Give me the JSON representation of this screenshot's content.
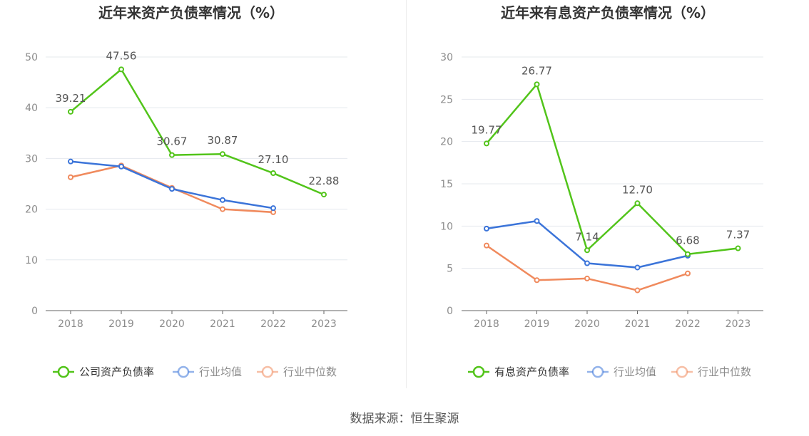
{
  "source": "数据来源：恒生聚源",
  "chart_data": [
    {
      "type": "line",
      "title": "近年来资产负债率情况（%）",
      "x": [
        "2018",
        "2019",
        "2020",
        "2021",
        "2022",
        "2023"
      ],
      "y_ticks": [
        0,
        10,
        20,
        30,
        40,
        50
      ],
      "ylim": [
        0,
        50
      ],
      "grid": true,
      "legend_position": "bottom",
      "series": [
        {
          "name": "公司资产负债率",
          "color": "#52c41a",
          "values": [
            39.21,
            47.56,
            30.67,
            30.87,
            27.1,
            22.88
          ],
          "labels": [
            "39.21",
            "47.56",
            "30.67",
            "30.87",
            "27.10",
            "22.88"
          ]
        },
        {
          "name": "行业均值",
          "color": "#3b74d9",
          "values": [
            29.4,
            28.4,
            24.0,
            21.8,
            20.2,
            null
          ]
        },
        {
          "name": "行业中位数",
          "color": "#f08a5d",
          "values": [
            26.3,
            28.6,
            24.2,
            20.0,
            19.4,
            null
          ]
        }
      ]
    },
    {
      "type": "line",
      "title": "近年来有息资产负债率情况（%）",
      "x": [
        "2018",
        "2019",
        "2020",
        "2021",
        "2022",
        "2023"
      ],
      "y_ticks": [
        0,
        5,
        10,
        15,
        20,
        25,
        30
      ],
      "ylim": [
        0,
        30
      ],
      "grid": true,
      "legend_position": "bottom",
      "series": [
        {
          "name": "有息资产负债率",
          "color": "#52c41a",
          "values": [
            19.77,
            26.77,
            7.14,
            12.7,
            6.68,
            7.37
          ],
          "labels": [
            "19.77",
            "26.77",
            "7.14",
            "12.70",
            "6.68",
            "7.37"
          ]
        },
        {
          "name": "行业均值",
          "color": "#3b74d9",
          "values": [
            9.7,
            10.6,
            5.6,
            5.1,
            6.5,
            null
          ]
        },
        {
          "name": "行业中位数",
          "color": "#f08a5d",
          "values": [
            7.7,
            3.6,
            3.8,
            2.4,
            4.4,
            null
          ]
        }
      ]
    }
  ]
}
